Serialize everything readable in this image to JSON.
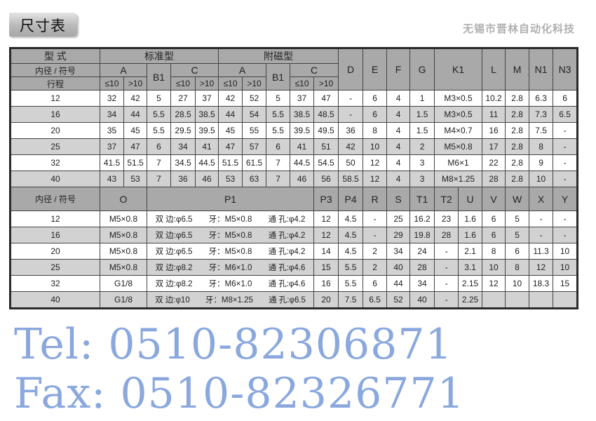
{
  "title": "尺寸表",
  "upper": {
    "type_label": "型 式",
    "standard_label": "标准型",
    "magnetic_label": "附磁型",
    "bore_label": "内径 / 符号",
    "stroke_label": "行程",
    "sub_le": "≤10",
    "sub_gt": ">10",
    "cols": [
      "A",
      "B1",
      "C",
      "A",
      "B1",
      "C",
      "D",
      "E",
      "F",
      "G",
      "K1",
      "L",
      "M",
      "N1",
      "N3"
    ],
    "rows": [
      [
        "12",
        "32",
        "42",
        "5",
        "27",
        "37",
        "42",
        "52",
        "5",
        "37",
        "47",
        "-",
        "6",
        "4",
        "1",
        "M3×0.5",
        "10.2",
        "2.8",
        "6.3",
        "6"
      ],
      [
        "16",
        "34",
        "44",
        "5.5",
        "28.5",
        "38.5",
        "44",
        "54",
        "5.5",
        "38.5",
        "48.5",
        "-",
        "6",
        "4",
        "1.5",
        "M3×0.5",
        "11",
        "2.8",
        "7.3",
        "6.5"
      ],
      [
        "20",
        "35",
        "45",
        "5.5",
        "29.5",
        "39.5",
        "45",
        "55",
        "5.5",
        "39.5",
        "49.5",
        "36",
        "8",
        "4",
        "1.5",
        "M4×0.7",
        "16",
        "2.8",
        "7.5",
        "-"
      ],
      [
        "25",
        "37",
        "47",
        "6",
        "34",
        "41",
        "47",
        "57",
        "6",
        "41",
        "51",
        "42",
        "10",
        "4",
        "2",
        "M5×0.8",
        "17",
        "2.8",
        "8",
        "-"
      ],
      [
        "32",
        "41.5",
        "51.5",
        "7",
        "34.5",
        "44.5",
        "51.5",
        "61.5",
        "7",
        "44.5",
        "54.5",
        "50",
        "12",
        "4",
        "3",
        "M6×1",
        "22",
        "2.8",
        "9",
        "-"
      ],
      [
        "40",
        "43",
        "53",
        "7",
        "36",
        "46",
        "53",
        "63",
        "7",
        "46",
        "56",
        "58.5",
        "12",
        "4",
        "3",
        "M8×1.25",
        "28",
        "2.8",
        "10",
        "-"
      ]
    ]
  },
  "lower": {
    "cols": [
      "内径 / 符号",
      "O",
      "P1",
      "P3",
      "P4",
      "R",
      "S",
      "T1",
      "T2",
      "U",
      "V",
      "W",
      "X",
      "Y"
    ],
    "rows": [
      {
        "bore": "12",
        "O": "M5×0.8",
        "p1": [
          "双 边:φ6.5",
          "牙：M5×0.8",
          "通 孔:φ4.2"
        ],
        "rest": [
          "12",
          "4.5",
          "-",
          "25",
          "16.2",
          "23",
          "1.6",
          "6",
          "5",
          "-",
          "-"
        ]
      },
      {
        "bore": "16",
        "O": "M5×0.8",
        "p1": [
          "双 边:φ6.5",
          "牙：M5×0.8",
          "通 孔:φ4.2"
        ],
        "rest": [
          "12",
          "4.5",
          "-",
          "29",
          "19.8",
          "28",
          "1.6",
          "6",
          "5",
          "-",
          "-"
        ]
      },
      {
        "bore": "20",
        "O": "M5×0.8",
        "p1": [
          "双 边:φ6.5",
          "牙：M5×0.8",
          "通 孔:φ4.2"
        ],
        "rest": [
          "14",
          "4.5",
          "2",
          "34",
          "24",
          "-",
          "2.1",
          "8",
          "6",
          "11.3",
          "10"
        ]
      },
      {
        "bore": "25",
        "O": "M5×0.8",
        "p1": [
          "双 边:φ8.2",
          "牙：M6×1.0",
          "通 孔:φ4.6"
        ],
        "rest": [
          "15",
          "5.5",
          "2",
          "40",
          "28",
          "-",
          "3.1",
          "10",
          "8",
          "12",
          "10"
        ]
      },
      {
        "bore": "32",
        "O": "G1/8",
        "p1": [
          "双 边:φ8.2",
          "牙：M6×1.0",
          "通 孔:φ4.6"
        ],
        "rest": [
          "16",
          "5.5",
          "6",
          "44",
          "34",
          "-",
          "2.15",
          "12",
          "10",
          "18.3",
          "15"
        ]
      },
      {
        "bore": "40",
        "O": "G1/8",
        "p1": [
          "双 边:φ10",
          "牙：M8×1.25",
          "通 孔:φ6.5"
        ],
        "rest": [
          "20",
          "7.5",
          "6.5",
          "52",
          "40",
          "-",
          "2.25",
          "",
          "",
          "",
          ""
        ]
      }
    ]
  },
  "watermarks": {
    "tel": "Tel: 0510-82306871",
    "fax": "Fax: 0510-82326771",
    "company": "无锡市晋林自动化科技"
  }
}
